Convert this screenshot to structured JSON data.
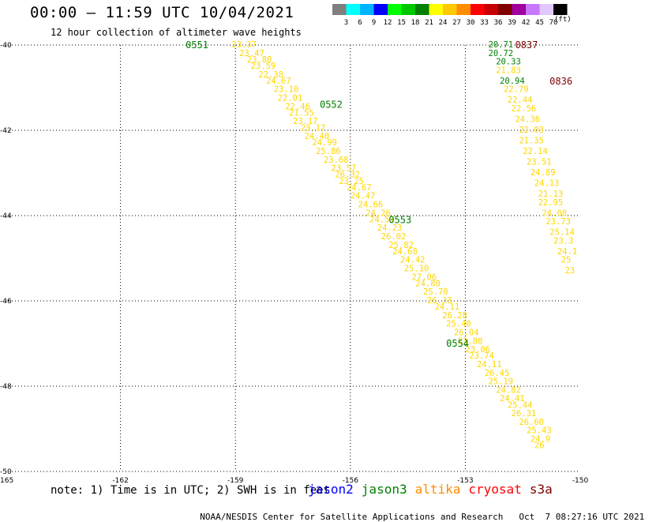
{
  "header": {
    "title": "00:00 – 11:59 UTC 10/04/2021",
    "subtitle": "12 hour collection of altimeter wave heights"
  },
  "legend": {
    "units": "(ft)",
    "bins": [
      {
        "label": "3",
        "color": "#7f7f7f"
      },
      {
        "label": "6",
        "color": "#00ffff"
      },
      {
        "label": "9",
        "color": "#00b4ff"
      },
      {
        "label": "12",
        "color": "#0000ff"
      },
      {
        "label": "15",
        "color": "#00ff00"
      },
      {
        "label": "18",
        "color": "#00c800"
      },
      {
        "label": "21",
        "color": "#008000"
      },
      {
        "label": "24",
        "color": "#ffff00"
      },
      {
        "label": "27",
        "color": "#ffc800"
      },
      {
        "label": "30",
        "color": "#ff8c00"
      },
      {
        "label": "33",
        "color": "#ff0000"
      },
      {
        "label": "36",
        "color": "#c80000"
      },
      {
        "label": "39",
        "color": "#800000"
      },
      {
        "label": "42",
        "color": "#a000a0"
      },
      {
        "label": "45",
        "color": "#c878ff"
      },
      {
        "label": "70",
        "color": "#e0c8ff"
      },
      {
        "label": "",
        "color": "#000000"
      }
    ]
  },
  "map": {
    "lon_ticks": [
      "-165",
      "-162",
      "-159",
      "-156",
      "-153",
      "-150"
    ],
    "lat_ticks": [
      "-40",
      "-42",
      "-44",
      "-46",
      "-48",
      "-50"
    ],
    "lon_range": [
      -165,
      -150
    ],
    "lat_range": [
      -40,
      -50
    ],
    "track1": {
      "times": [
        {
          "text": "0551",
          "lon": -160.3,
          "lat": -40.0,
          "color": "#008000"
        },
        {
          "text": "0552",
          "lon": -156.8,
          "lat": -41.4,
          "color": "#008000"
        },
        {
          "text": "0553",
          "lon": -155.0,
          "lat": -44.1,
          "color": "#008000"
        },
        {
          "text": "0554",
          "lon": -153.5,
          "lat": -47.0,
          "color": "#008000"
        }
      ],
      "values": [
        {
          "v": "23.37",
          "lon": -159.1,
          "lat": -40.0
        },
        {
          "v": "23.47",
          "lon": -158.9,
          "lat": -40.2
        },
        {
          "v": "23.80",
          "lon": -158.7,
          "lat": -40.35
        },
        {
          "v": "23.59",
          "lon": -158.6,
          "lat": -40.5
        },
        {
          "v": "22.38",
          "lon": -158.4,
          "lat": -40.7
        },
        {
          "v": "24.67",
          "lon": -158.2,
          "lat": -40.85
        },
        {
          "v": "23.10",
          "lon": -158.0,
          "lat": -41.05
        },
        {
          "v": "22.01",
          "lon": -157.9,
          "lat": -41.25
        },
        {
          "v": "22.46",
          "lon": -157.7,
          "lat": -41.45
        },
        {
          "v": "21.55",
          "lon": -157.6,
          "lat": -41.6
        },
        {
          "v": "23.17",
          "lon": -157.5,
          "lat": -41.8
        },
        {
          "v": "23.17",
          "lon": -157.3,
          "lat": -41.95
        },
        {
          "v": "24.40",
          "lon": -157.2,
          "lat": -42.15
        },
        {
          "v": "24.99",
          "lon": -157.0,
          "lat": -42.3
        },
        {
          "v": "25.86",
          "lon": -156.9,
          "lat": -42.5
        },
        {
          "v": "23.68",
          "lon": -156.7,
          "lat": -42.7
        },
        {
          "v": "23.57",
          "lon": -156.5,
          "lat": -42.9
        },
        {
          "v": "26.32",
          "lon": -156.4,
          "lat": -43.05
        },
        {
          "v": "23.25",
          "lon": -156.3,
          "lat": -43.2
        },
        {
          "v": "24.67",
          "lon": -156.1,
          "lat": -43.35
        },
        {
          "v": "24.47",
          "lon": -156.0,
          "lat": -43.55
        },
        {
          "v": "24.66",
          "lon": -155.8,
          "lat": -43.75
        },
        {
          "v": "24.26",
          "lon": -155.6,
          "lat": -43.95
        },
        {
          "v": "24.57",
          "lon": -155.5,
          "lat": -44.1
        },
        {
          "v": "24.23",
          "lon": -155.3,
          "lat": -44.3
        },
        {
          "v": "26.02",
          "lon": -155.2,
          "lat": -44.5
        },
        {
          "v": "25.82",
          "lon": -155.0,
          "lat": -44.7
        },
        {
          "v": "24.68",
          "lon": -154.9,
          "lat": -44.85
        },
        {
          "v": "24.42",
          "lon": -154.7,
          "lat": -45.05
        },
        {
          "v": "25.10",
          "lon": -154.6,
          "lat": -45.25
        },
        {
          "v": "27.06",
          "lon": -154.4,
          "lat": -45.45
        },
        {
          "v": "24.80",
          "lon": -154.3,
          "lat": -45.6
        },
        {
          "v": "25.70",
          "lon": -154.1,
          "lat": -45.8
        },
        {
          "v": "26.33",
          "lon": -154.0,
          "lat": -46.0
        },
        {
          "v": "24.11",
          "lon": -153.8,
          "lat": -46.15
        },
        {
          "v": "26.28",
          "lon": -153.6,
          "lat": -46.35
        },
        {
          "v": "25.40",
          "lon": -153.5,
          "lat": -46.55
        },
        {
          "v": "26.04",
          "lon": -153.3,
          "lat": -46.75
        },
        {
          "v": "23.80",
          "lon": -153.2,
          "lat": -46.95
        },
        {
          "v": "23.06",
          "lon": -153.0,
          "lat": -47.15
        },
        {
          "v": "23.74",
          "lon": -152.9,
          "lat": -47.3
        },
        {
          "v": "24.11",
          "lon": -152.7,
          "lat": -47.5
        },
        {
          "v": "26.45",
          "lon": -152.5,
          "lat": -47.7
        },
        {
          "v": "25.19",
          "lon": -152.4,
          "lat": -47.9
        },
        {
          "v": "24.82",
          "lon": -152.2,
          "lat": -48.1
        },
        {
          "v": "24.41",
          "lon": -152.1,
          "lat": -48.3
        },
        {
          "v": "25.44",
          "lon": -151.9,
          "lat": -48.45
        },
        {
          "v": "26.31",
          "lon": -151.8,
          "lat": -48.65
        },
        {
          "v": "26.60",
          "lon": -151.6,
          "lat": -48.85
        },
        {
          "v": "25.43",
          "lon": -151.4,
          "lat": -49.05
        },
        {
          "v": "24.9",
          "lon": -151.3,
          "lat": -49.25
        },
        {
          "v": "26",
          "lon": -151.2,
          "lat": -49.4
        }
      ]
    },
    "track2": {
      "times": [
        {
          "text": "0837",
          "lon": -151.7,
          "lat": -40.0,
          "color": "#800000"
        },
        {
          "text": "0836",
          "lon": -150.8,
          "lat": -40.85,
          "color": "#800000"
        }
      ],
      "values": [
        {
          "v": "20.71",
          "lon": -152.4,
          "lat": -40.0,
          "color": "#008000"
        },
        {
          "v": "20.72",
          "lon": -152.4,
          "lat": -40.2,
          "color": "#008000"
        },
        {
          "v": "20.33",
          "lon": -152.2,
          "lat": -40.4,
          "color": "#008000"
        },
        {
          "v": "21.83",
          "lon": -152.2,
          "lat": -40.6,
          "color": "#ffd700"
        },
        {
          "v": "20.94",
          "lon": -152.1,
          "lat": -40.85,
          "color": "#008000"
        },
        {
          "v": "22.79",
          "lon": -152.0,
          "lat": -41.05,
          "color": "#ffd700"
        },
        {
          "v": "22.44",
          "lon": -151.9,
          "lat": -41.3,
          "color": "#ffd700"
        },
        {
          "v": "22.56",
          "lon": -151.8,
          "lat": -41.5,
          "color": "#ffd700"
        },
        {
          "v": "24.36",
          "lon": -151.7,
          "lat": -41.75,
          "color": "#ffd700"
        },
        {
          "v": "22.03",
          "lon": -151.6,
          "lat": -42.0,
          "color": "#ffd700"
        },
        {
          "v": "21.35",
          "lon": -151.6,
          "lat": -42.25,
          "color": "#ffd700"
        },
        {
          "v": "22.14",
          "lon": -151.5,
          "lat": -42.5,
          "color": "#ffd700"
        },
        {
          "v": "23.51",
          "lon": -151.4,
          "lat": -42.75,
          "color": "#ffd700"
        },
        {
          "v": "24.89",
          "lon": -151.3,
          "lat": -43.0,
          "color": "#ffd700"
        },
        {
          "v": "24.13",
          "lon": -151.2,
          "lat": -43.25,
          "color": "#ffd700"
        },
        {
          "v": "21.13",
          "lon": -151.1,
          "lat": -43.5,
          "color": "#ffd700"
        },
        {
          "v": "22.95",
          "lon": -151.1,
          "lat": -43.7,
          "color": "#ffd700"
        },
        {
          "v": "24.08",
          "lon": -151.0,
          "lat": -43.95,
          "color": "#ffd700"
        },
        {
          "v": "23.73",
          "lon": -150.9,
          "lat": -44.15,
          "color": "#ffd700"
        },
        {
          "v": "25.14",
          "lon": -150.8,
          "lat": -44.4,
          "color": "#ffd700"
        },
        {
          "v": "23.3",
          "lon": -150.7,
          "lat": -44.6,
          "color": "#ffd700"
        },
        {
          "v": "24.1",
          "lon": -150.6,
          "lat": -44.85,
          "color": "#ffd700"
        },
        {
          "v": "25",
          "lon": -150.5,
          "lat": -45.05,
          "color": "#ffd700"
        },
        {
          "v": "23",
          "lon": -150.4,
          "lat": -45.3,
          "color": "#ffd700"
        }
      ]
    }
  },
  "footer": {
    "note": "note: 1) Time is in UTC; 2) SWH is in feet",
    "satellites": [
      {
        "name": "jason2",
        "color": "#0000ff"
      },
      {
        "name": "jason3",
        "color": "#008000"
      },
      {
        "name": "altika",
        "color": "#ff8c00"
      },
      {
        "name": "cryosat",
        "color": "#ff0000"
      },
      {
        "name": "s3a",
        "color": "#800000"
      }
    ],
    "credit": "NOAA/NESDIS Center for Satellite Applications and Research",
    "timestamp": "Oct  7 08:27:16 UTC 2021"
  }
}
